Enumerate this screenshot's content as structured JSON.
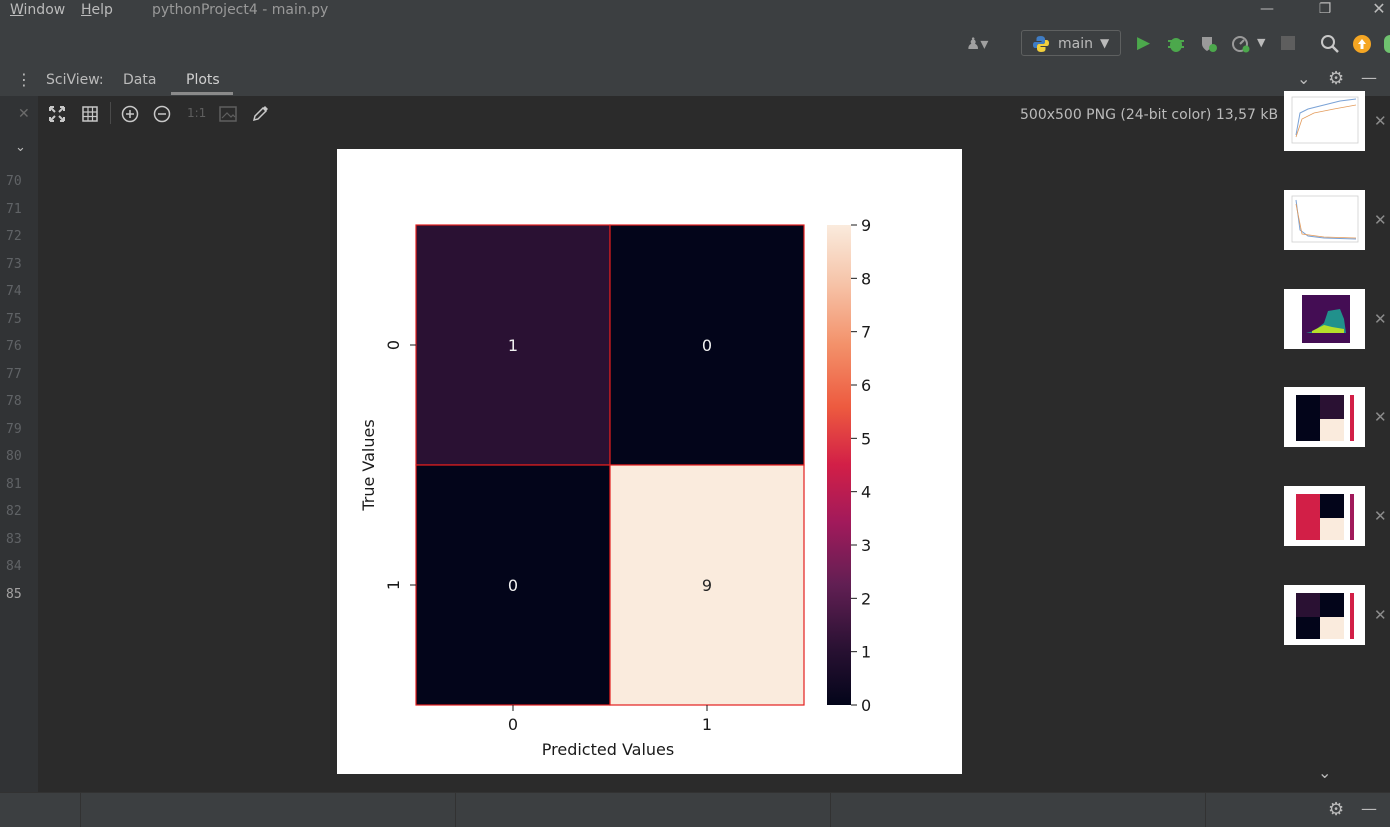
{
  "menu": {
    "window": "Window",
    "help": "Help",
    "title": "pythonProject4 - main.py"
  },
  "toolbar": {
    "branch": "main"
  },
  "sciview": {
    "label": "SciView:",
    "tabs": [
      "Data",
      "Plots"
    ],
    "active_tab": "Plots"
  },
  "plot_toolbar": {
    "zoom_reset": "1:1",
    "image_info": "500x500 PNG (24-bit color) 13,57 kB"
  },
  "line_numbers": [
    "70",
    "71",
    "72",
    "73",
    "74",
    "75",
    "76",
    "77",
    "78",
    "79",
    "80",
    "81",
    "82",
    "83",
    "84",
    "85"
  ],
  "chart_data": {
    "type": "heatmap",
    "title": "",
    "xlabel": "Predicted Values",
    "ylabel": "True Values",
    "x_categories": [
      "0",
      "1"
    ],
    "y_categories": [
      "0",
      "1"
    ],
    "values": [
      [
        1,
        0
      ],
      [
        0,
        9
      ]
    ],
    "colorbar": {
      "min": 0,
      "max": 9,
      "ticks": [
        0,
        1,
        2,
        3,
        4,
        5,
        6,
        7,
        8,
        9
      ]
    },
    "colors": {
      "0": "#03051a",
      "1": "#2a1133",
      "9": "#faebdd",
      "grid": "#e31f1f"
    }
  },
  "thumbnails": [
    "line-plot",
    "line-plot",
    "image-plot",
    "heatmap",
    "heatmap",
    "heatmap"
  ]
}
